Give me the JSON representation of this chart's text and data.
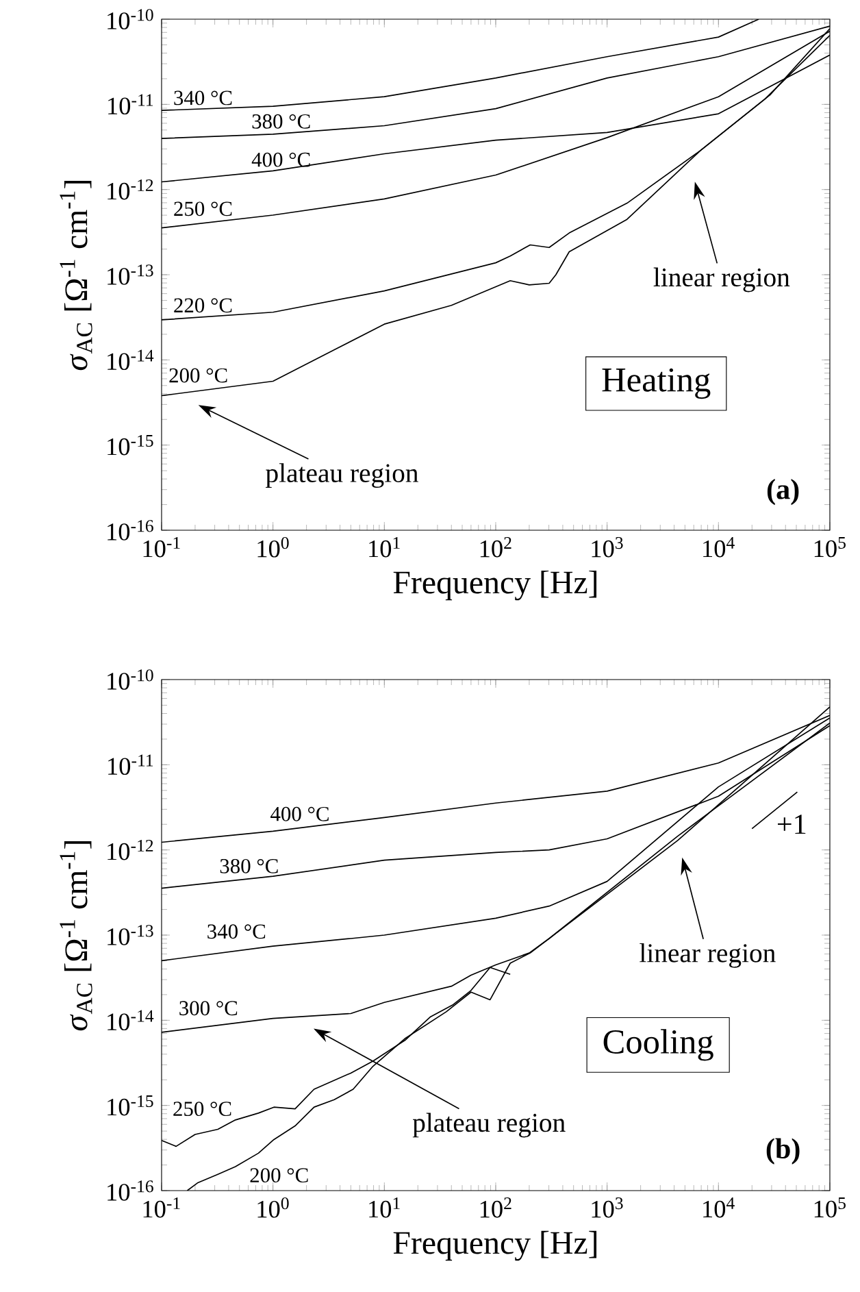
{
  "chart_data": [
    {
      "type": "line",
      "xlabel": "Frequency [Hz]",
      "ylabel": "*σ*$_{AC}$  [Ω$^{-1}$ cm$^{-1}$]",
      "log": "xy",
      "grid": false,
      "line_style": "solid",
      "xlim": [
        0.1,
        100000
      ],
      "ylim": [
        1e-16,
        1e-10
      ],
      "xticks": [
        {
          "value": 0.1,
          "label": "10$^{-1}$"
        },
        {
          "value": 1,
          "label": "10$^{0}$"
        },
        {
          "value": 10,
          "label": "10$^{1}$"
        },
        {
          "value": 100,
          "label": "10$^{2}$"
        },
        {
          "value": 1000,
          "label": "10$^{3}$"
        },
        {
          "value": 10000,
          "label": "10$^{4}$"
        },
        {
          "value": 100000,
          "label": "10$^{5}$"
        }
      ],
      "yticks": [
        {
          "value": 1e-16,
          "label": "10$^{-16}$"
        },
        {
          "value": 1e-15,
          "label": "10$^{-15}$"
        },
        {
          "value": 1e-14,
          "label": "10$^{-14}$"
        },
        {
          "value": 1e-13,
          "label": "10$^{-13}$"
        },
        {
          "value": 1e-12,
          "label": "10$^{-12}$"
        },
        {
          "value": 1e-11,
          "label": "10$^{-11}$"
        },
        {
          "value": 1e-10,
          "label": "10$^{-10}$"
        }
      ],
      "series": [
        {
          "name": "340 °C",
          "color": "#000000",
          "x": [
            0.1,
            1,
            10,
            100,
            1000,
            10000,
            23000
          ],
          "values": [
            8.5e-12,
            9.5e-12,
            1.23e-11,
            2.04e-11,
            3.63e-11,
            6.17e-11,
            1e-10
          ]
        },
        {
          "name": "380 °C",
          "color": "#000000",
          "x": [
            0.1,
            1,
            10,
            100,
            1000,
            10000,
            100000
          ],
          "values": [
            3.98e-12,
            4.47e-12,
            5.62e-12,
            8.91e-12,
            2.04e-11,
            3.63e-11,
            8.3e-11
          ]
        },
        {
          "name": "400 °C",
          "color": "#000000",
          "x": [
            0.1,
            1,
            10,
            100,
            1000,
            10000,
            100000
          ],
          "values": [
            1.23e-12,
            1.66e-12,
            2.63e-12,
            3.8e-12,
            4.68e-12,
            7.76e-12,
            3.8e-11
          ]
        },
        {
          "name": "250 °C",
          "color": "#000000",
          "x": [
            0.1,
            1,
            10,
            100,
            1000,
            10000,
            100000
          ],
          "values": [
            3.55e-13,
            5.01e-13,
            7.76e-13,
            1.48e-12,
            4.07e-12,
            1.23e-11,
            7.24e-11
          ]
        },
        {
          "name": "220 °C",
          "color": "#000000",
          "x": [
            0.1,
            1,
            10,
            100,
            135,
            204,
            302,
            457,
            1510,
            6900,
            29000,
            100000
          ],
          "values": [
            2.95e-14,
            3.63e-14,
            6.46e-14,
            1.38e-13,
            1.66e-13,
            2.24e-13,
            2.09e-13,
            3.09e-13,
            6.92e-13,
            2.88e-12,
            1.29e-11,
            7.76e-11
          ]
        },
        {
          "name": "200 °C",
          "color": "#000000",
          "x": [
            0.1,
            1,
            10,
            40,
            135,
            200,
            302,
            347,
            457,
            1510,
            6900,
            26000,
            100000
          ],
          "values": [
            3.8e-15,
            5.62e-15,
            2.63e-14,
            4.37e-14,
            8.51e-14,
            7.59e-14,
            7.94e-14,
            1e-13,
            1.86e-13,
            4.47e-13,
            2.88e-12,
            1.15e-11,
            6.46e-11
          ]
        }
      ],
      "annotations": [
        "linear region",
        "plateau region",
        "Heating",
        "**(a)**"
      ]
    },
    {
      "type": "line",
      "xlabel": "Frequency [Hz]",
      "ylabel": "*σ*$_{AC}$  [Ω$^{-1}$ cm$^{-1}$]",
      "log": "xy",
      "grid": false,
      "line_style": "solid",
      "xlim": [
        0.1,
        100000
      ],
      "ylim": [
        1e-16,
        1e-10
      ],
      "xticks": [
        {
          "value": 0.1,
          "label": "10$^{-1}$"
        },
        {
          "value": 1,
          "label": "10$^{0}$"
        },
        {
          "value": 10,
          "label": "10$^{1}$"
        },
        {
          "value": 100,
          "label": "10$^{2}$"
        },
        {
          "value": 1000,
          "label": "10$^{3}$"
        },
        {
          "value": 10000,
          "label": "10$^{4}$"
        },
        {
          "value": 100000,
          "label": "10$^{5}$"
        }
      ],
      "yticks": [
        {
          "value": 1e-16,
          "label": "10$^{-16}$"
        },
        {
          "value": 1e-15,
          "label": "10$^{-15}$"
        },
        {
          "value": 1e-14,
          "label": "10$^{-14}$"
        },
        {
          "value": 1e-13,
          "label": "10$^{-13}$"
        },
        {
          "value": 1e-12,
          "label": "10$^{-12}$"
        },
        {
          "value": 1e-11,
          "label": "10$^{-11}$"
        },
        {
          "value": 1e-10,
          "label": "10$^{-10}$"
        }
      ],
      "series": [
        {
          "name": "400 °C",
          "color": "#000000",
          "x": [
            0.1,
            1,
            10,
            100,
            1000,
            10000,
            100000
          ],
          "values": [
            1.23e-12,
            1.66e-12,
            2.4e-12,
            3.55e-12,
            4.9e-12,
            1.05e-11,
            3.8e-11
          ]
        },
        {
          "name": "380 °C",
          "color": "#000000",
          "x": [
            0.1,
            1,
            10,
            100,
            302,
            1000,
            10000,
            100000
          ],
          "values": [
            3.55e-13,
            4.9e-13,
            7.59e-13,
            9.33e-13,
            1e-12,
            1.35e-12,
            4.27e-12,
            2.88e-11
          ]
        },
        {
          "name": "340 °C",
          "color": "#000000",
          "x": [
            0.1,
            1,
            5,
            10,
            100,
            302,
            1000,
            10000,
            100000
          ],
          "values": [
            5.01e-14,
            7.41e-14,
            9.12e-14,
            1e-13,
            1.58e-13,
            2.19e-13,
            4.27e-13,
            5.5e-12,
            3.55e-11
          ]
        },
        {
          "name": "300 °C",
          "color": "#000000",
          "x": [
            0.1,
            1,
            5,
            10,
            40,
            60,
            100,
            200,
            302,
            4300,
            100000
          ],
          "values": [
            7.24e-15,
            1.05e-14,
            1.2e-14,
            1.62e-14,
            2.51e-14,
            3.39e-14,
            4.47e-14,
            6.17e-14,
            9.12e-14,
            1.45e-12,
            3.09e-11
          ]
        },
        {
          "name": "250 °C",
          "color": "#000000",
          "x": [
            0.1,
            0.135,
            0.2,
            0.32,
            0.46,
            0.74,
            1.02,
            1.58,
            2.34,
            5.0,
            7.9,
            15.5,
            26,
            41,
            60,
            89,
            135
          ],
          "values": [
            3.89e-16,
            3.31e-16,
            4.57e-16,
            5.25e-16,
            6.76e-16,
            8.13e-16,
            9.55e-16,
            9.12e-16,
            1.55e-15,
            2.4e-15,
            3.31e-15,
            5.89e-15,
            1.1e-14,
            1.51e-14,
            2.24e-14,
            4.17e-14,
            3.47e-14
          ]
        },
        {
          "name": "200 °C",
          "color": "#000000",
          "x": [
            0.17,
            0.21,
            0.32,
            0.46,
            0.74,
            1.02,
            1.58,
            2.34,
            3.55,
            5.25,
            7.9,
            15.5,
            36,
            60,
            89,
            135,
            204,
            457,
            4300,
            100000
          ],
          "values": [
            1e-16,
            1.23e-16,
            1.55e-16,
            1.91e-16,
            2.75e-16,
            3.98e-16,
            5.75e-16,
            9.55e-16,
            1.17e-15,
            1.55e-15,
            2.88e-15,
            6.17e-15,
            1.26e-14,
            2.14e-14,
            1.74e-14,
            4.68e-14,
            6.17e-14,
            1.38e-13,
            1.29e-12,
            4.79e-11
          ]
        },
        {
          "color": "#000000",
          "x": [
            20000,
            51000
          ],
          "values": [
            1.78e-12,
            4.79e-12
          ]
        }
      ],
      "annotations": [
        "linear region",
        "plateau region",
        "Cooling",
        "**(b)**",
        "+1"
      ]
    }
  ]
}
